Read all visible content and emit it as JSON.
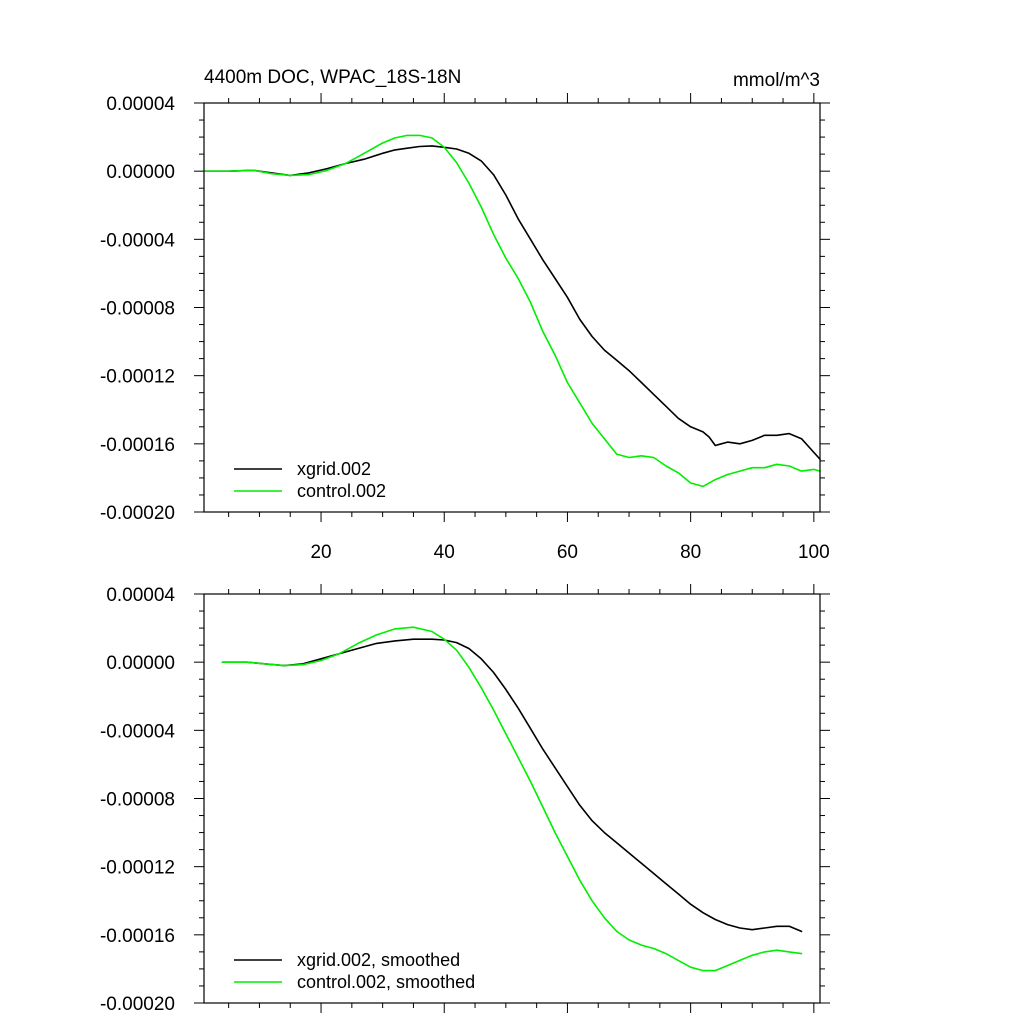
{
  "chart_data": [
    {
      "type": "line",
      "title": "4400m DOC, WPAC_18S-18N",
      "units": "mmol/m^3",
      "xlim": [
        1,
        101
      ],
      "ylim": [
        -0.0002,
        4e-05
      ],
      "x_tick_labels": [
        "20",
        "40",
        "60",
        "80",
        "100"
      ],
      "y_tick_labels": [
        "0.00004",
        "0.00000",
        "-0.00004",
        "-0.00008",
        "-0.00012",
        "-0.00016",
        "-0.00020"
      ],
      "series": [
        {
          "name": "xgrid.002",
          "color": "#000000",
          "x": [
            1,
            5,
            9,
            12,
            15,
            18,
            21,
            24,
            27,
            30,
            32,
            34,
            36,
            38,
            40,
            42,
            44,
            46,
            48,
            50,
            52,
            54,
            56,
            58,
            60,
            62,
            64,
            66,
            68,
            70,
            72,
            74,
            76,
            78,
            80,
            82,
            83,
            84,
            85,
            86,
            88,
            90,
            92,
            94,
            96,
            98,
            100,
            101
          ],
          "values": [
            0.0,
            0.0,
            5e-07,
            -1e-06,
            -2.5e-06,
            -1e-06,
            1.5e-06,
            4.5e-06,
            7e-06,
            1.05e-05,
            1.25e-05,
            1.35e-05,
            1.45e-05,
            1.48e-05,
            1.4e-05,
            1.3e-05,
            1.05e-05,
            6e-06,
            -2e-06,
            -1.4e-05,
            -2.8e-05,
            -4e-05,
            -5.2e-05,
            -6.3e-05,
            -7.4e-05,
            -8.7e-05,
            -9.7e-05,
            -0.000105,
            -0.000111,
            -0.000117,
            -0.000124,
            -0.000131,
            -0.000138,
            -0.000145,
            -0.00015,
            -0.000153,
            -0.000156,
            -0.000161,
            -0.00016,
            -0.000159,
            -0.00016,
            -0.000158,
            -0.000155,
            -0.000155,
            -0.000154,
            -0.000157,
            -0.000165,
            -0.000169
          ]
        },
        {
          "name": "control.002",
          "color": "#00ee00",
          "x": [
            1,
            5,
            9,
            12,
            15,
            18,
            21,
            24,
            27,
            30,
            32,
            34,
            36,
            38,
            40,
            42,
            44,
            46,
            48,
            50,
            52,
            54,
            56,
            58,
            60,
            62,
            64,
            66,
            68,
            70,
            72,
            74,
            76,
            78,
            80,
            82,
            84,
            86,
            88,
            90,
            92,
            94,
            96,
            98,
            100,
            101
          ],
          "values": [
            0.0,
            0.0,
            5e-07,
            -1.5e-06,
            -2.5e-06,
            -2e-06,
            5e-07,
            4.5e-06,
            1.05e-05,
            1.65e-05,
            1.95e-05,
            2.1e-05,
            2.1e-05,
            1.95e-05,
            1.4e-05,
            5e-06,
            -7e-06,
            -2.1e-05,
            -3.7e-05,
            -5.1e-05,
            -6.3e-05,
            -7.7e-05,
            -9.4e-05,
            -0.000108,
            -0.000124,
            -0.000136,
            -0.000148,
            -0.000157,
            -0.000166,
            -0.000168,
            -0.000167,
            -0.000168,
            -0.000173,
            -0.000177,
            -0.000183,
            -0.000185,
            -0.000181,
            -0.000178,
            -0.000176,
            -0.000174,
            -0.000174,
            -0.000172,
            -0.000173,
            -0.000176,
            -0.000175,
            -0.000176
          ]
        }
      ]
    },
    {
      "type": "line",
      "title": "",
      "units": "",
      "xlim": [
        1,
        101
      ],
      "ylim": [
        -0.0002,
        4e-05
      ],
      "x_tick_labels": [],
      "y_tick_labels": [
        "0.00004",
        "0.00000",
        "-0.00004",
        "-0.00008",
        "-0.00012",
        "-0.00016",
        "-0.00020"
      ],
      "series": [
        {
          "name": "xgrid.002, smoothed",
          "color": "#000000",
          "x": [
            4,
            8,
            11,
            14,
            17,
            20,
            23,
            26,
            29,
            32,
            35,
            38,
            40,
            42,
            44,
            46,
            48,
            50,
            52,
            54,
            56,
            58,
            60,
            62,
            64,
            66,
            68,
            70,
            72,
            74,
            76,
            78,
            80,
            82,
            84,
            86,
            88,
            90,
            92,
            94,
            96,
            98
          ],
          "values": [
            0.0,
            0.0,
            -1e-06,
            -2e-06,
            -1e-06,
            2e-06,
            5e-06,
            8e-06,
            1.1e-05,
            1.25e-05,
            1.35e-05,
            1.35e-05,
            1.3e-05,
            1.15e-05,
            8e-06,
            2e-06,
            -6e-06,
            -1.6e-05,
            -2.7e-05,
            -3.9e-05,
            -5.1e-05,
            -6.2e-05,
            -7.3e-05,
            -8.4e-05,
            -9.3e-05,
            -0.0001,
            -0.000106,
            -0.000112,
            -0.000118,
            -0.000124,
            -0.00013,
            -0.000136,
            -0.000142,
            -0.000147,
            -0.000151,
            -0.000154,
            -0.000156,
            -0.000157,
            -0.000156,
            -0.000155,
            -0.000155,
            -0.000158
          ]
        },
        {
          "name": "control.002, smoothed",
          "color": "#00ee00",
          "x": [
            4,
            8,
            11,
            14,
            17,
            20,
            23,
            26,
            29,
            32,
            35,
            38,
            40,
            42,
            44,
            46,
            48,
            50,
            52,
            54,
            56,
            58,
            60,
            62,
            64,
            66,
            68,
            70,
            72,
            74,
            76,
            78,
            80,
            82,
            84,
            86,
            88,
            90,
            92,
            94,
            96,
            98
          ],
          "values": [
            0.0,
            0.0,
            -1e-06,
            -2e-06,
            -1.5e-06,
            1e-06,
            5e-06,
            1.1e-05,
            1.6e-05,
            1.95e-05,
            2.05e-05,
            1.8e-05,
            1.35e-05,
            7e-06,
            -3e-06,
            -1.5e-05,
            -2.8e-05,
            -4.2e-05,
            -5.6e-05,
            -7e-05,
            -8.5e-05,
            -0.0001,
            -0.000114,
            -0.000128,
            -0.00014,
            -0.00015,
            -0.000158,
            -0.000163,
            -0.000166,
            -0.000168,
            -0.000171,
            -0.000175,
            -0.000179,
            -0.000181,
            -0.000181,
            -0.000178,
            -0.000175,
            -0.000172,
            -0.00017,
            -0.000169,
            -0.00017,
            -0.000171
          ]
        }
      ]
    }
  ]
}
